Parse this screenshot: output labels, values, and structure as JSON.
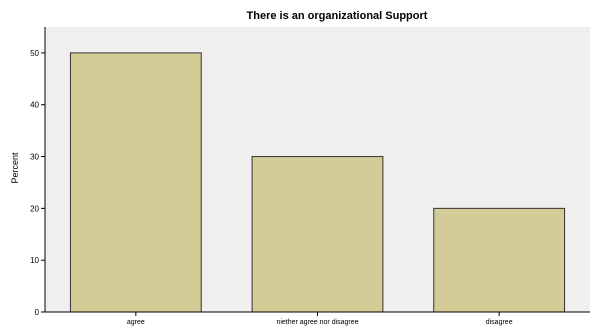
{
  "chart_data": {
    "type": "bar",
    "title": "There is an organizational Support",
    "xlabel": "",
    "ylabel": "Percent",
    "categories": [
      "agree",
      "niether agree nor disagree",
      "disagree"
    ],
    "values": [
      50,
      30,
      20
    ],
    "yticks": [
      0,
      10,
      20,
      30,
      40,
      50
    ],
    "ylim": [
      0,
      55
    ],
    "grid": false,
    "legend": "none",
    "colors": {
      "bar_fill": "#d3cc96",
      "bar_stroke": "#333333",
      "plot_background": "#efefef"
    }
  }
}
